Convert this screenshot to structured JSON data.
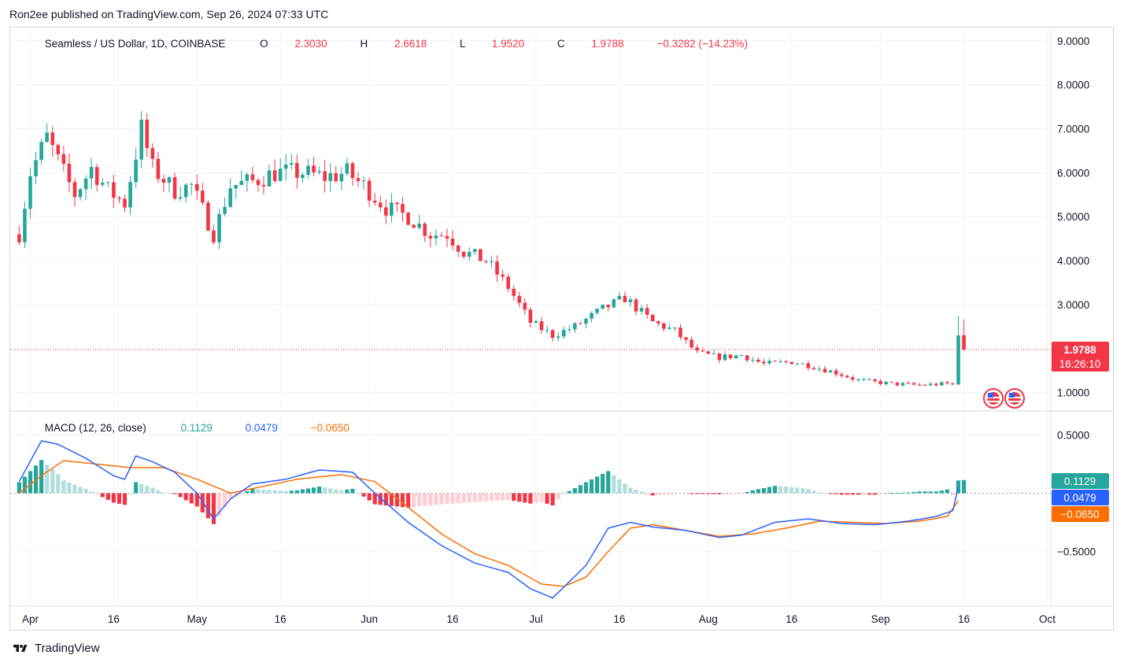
{
  "header": {
    "publisher_text": "Ron2ee published on TradingView.com, Sep 26, 2024 07:33 UTC"
  },
  "symbol_line": {
    "title": "Seamless / US Dollar, 1D, COINBASE",
    "o_label": "O",
    "o_value": "2.3030",
    "h_label": "H",
    "h_value": "2.6618",
    "l_label": "L",
    "l_value": "1.9520",
    "c_label": "C",
    "c_value": "1.9788",
    "change": "−0.3282 (−14.23%)"
  },
  "macd_line": {
    "title": "MACD (12, 26, close)",
    "hist_value": "0.1129",
    "macd_value": "0.0479",
    "signal_value": "−0.0650"
  },
  "price_badge": {
    "price": "1.9788",
    "countdown": "16:26:10"
  },
  "macd_badges": {
    "hist": "0.1129",
    "macd": "0.0479",
    "signal": "−0.0650"
  },
  "footer": {
    "brand": "TradingView"
  },
  "colors": {
    "up": "#26a69a",
    "down": "#f23645",
    "up_light": "#b2dfdb",
    "down_light": "#ffcdd2",
    "macd": "#2962ff",
    "signal": "#ff6d00",
    "grid": "#f0f3fa",
    "text": "#131722"
  },
  "chart_data": [
    {
      "type": "candlestick",
      "title": "Seamless / US Dollar, 1D, COINBASE",
      "ylim": [
        0.6,
        9.3
      ],
      "y_ticks": [
        "9.0000",
        "8.0000",
        "7.0000",
        "6.0000",
        "5.0000",
        "4.0000",
        "3.0000",
        "1.0000"
      ],
      "x_ticks": [
        "Apr",
        "16",
        "May",
        "16",
        "Jun",
        "16",
        "Jul",
        "16",
        "Aug",
        "16",
        "Sep",
        "16",
        "Oct"
      ],
      "last_price": 1.9788,
      "anchors": [
        {
          "d": -2,
          "p": 4.6
        },
        {
          "d": 0,
          "p": 6.0
        },
        {
          "d": 3,
          "p": 6.8
        },
        {
          "d": 6,
          "p": 6.0
        },
        {
          "d": 8,
          "p": 5.5
        },
        {
          "d": 11,
          "p": 6.1
        },
        {
          "d": 14,
          "p": 5.6
        },
        {
          "d": 17,
          "p": 5.3
        },
        {
          "d": 20,
          "p": 7.0
        },
        {
          "d": 22,
          "p": 6.1
        },
        {
          "d": 26,
          "p": 5.6
        },
        {
          "d": 29,
          "p": 5.7
        },
        {
          "d": 33,
          "p": 4.6
        },
        {
          "d": 36,
          "p": 5.7
        },
        {
          "d": 40,
          "p": 5.8
        },
        {
          "d": 44,
          "p": 6.0
        },
        {
          "d": 49,
          "p": 6.0
        },
        {
          "d": 53,
          "p": 5.9
        },
        {
          "d": 57,
          "p": 6.0
        },
        {
          "d": 60,
          "p": 5.7
        },
        {
          "d": 64,
          "p": 5.2
        },
        {
          "d": 68,
          "p": 5.0
        },
        {
          "d": 72,
          "p": 4.6
        },
        {
          "d": 75,
          "p": 4.6
        },
        {
          "d": 78,
          "p": 4.2
        },
        {
          "d": 82,
          "p": 4.0
        },
        {
          "d": 86,
          "p": 3.4
        },
        {
          "d": 90,
          "p": 2.6
        },
        {
          "d": 94,
          "p": 2.3
        },
        {
          "d": 98,
          "p": 2.5
        },
        {
          "d": 103,
          "p": 2.9
        },
        {
          "d": 107,
          "p": 3.15
        },
        {
          "d": 112,
          "p": 2.6
        },
        {
          "d": 116,
          "p": 2.4
        },
        {
          "d": 120,
          "p": 1.9
        },
        {
          "d": 124,
          "p": 1.8
        },
        {
          "d": 128,
          "p": 1.85
        },
        {
          "d": 132,
          "p": 1.65
        },
        {
          "d": 137,
          "p": 1.7
        },
        {
          "d": 140,
          "p": 1.62
        },
        {
          "d": 145,
          "p": 1.45
        },
        {
          "d": 149,
          "p": 1.28
        },
        {
          "d": 155,
          "p": 1.2
        },
        {
          "d": 160,
          "p": 1.17
        },
        {
          "d": 165,
          "p": 1.2
        },
        {
          "d": 166,
          "p": 1.18
        },
        {
          "d": 167,
          "p": 2.3
        },
        {
          "d": 168,
          "p": 1.98
        }
      ]
    },
    {
      "type": "macd",
      "title": "MACD (12, 26, close)",
      "ylim": [
        -0.97,
        0.7
      ],
      "y_ticks": [
        "0.5000",
        "−0.5000"
      ],
      "macd_anchors": [
        {
          "d": -2,
          "p": 0.1
        },
        {
          "d": 2,
          "p": 0.45
        },
        {
          "d": 5,
          "p": 0.42
        },
        {
          "d": 10,
          "p": 0.3
        },
        {
          "d": 15,
          "p": 0.15
        },
        {
          "d": 17,
          "p": 0.12
        },
        {
          "d": 19,
          "p": 0.32
        },
        {
          "d": 22,
          "p": 0.27
        },
        {
          "d": 26,
          "p": 0.18
        },
        {
          "d": 30,
          "p": 0.0
        },
        {
          "d": 33,
          "p": -0.22
        },
        {
          "d": 36,
          "p": -0.05
        },
        {
          "d": 40,
          "p": 0.08
        },
        {
          "d": 46,
          "p": 0.12
        },
        {
          "d": 52,
          "p": 0.2
        },
        {
          "d": 58,
          "p": 0.18
        },
        {
          "d": 62,
          "p": 0.0
        },
        {
          "d": 68,
          "p": -0.25
        },
        {
          "d": 74,
          "p": -0.45
        },
        {
          "d": 80,
          "p": -0.6
        },
        {
          "d": 86,
          "p": -0.68
        },
        {
          "d": 90,
          "p": -0.82
        },
        {
          "d": 94,
          "p": -0.9
        },
        {
          "d": 100,
          "p": -0.62
        },
        {
          "d": 104,
          "p": -0.3
        },
        {
          "d": 108,
          "p": -0.25
        },
        {
          "d": 112,
          "p": -0.29
        },
        {
          "d": 118,
          "p": -0.32
        },
        {
          "d": 124,
          "p": -0.38
        },
        {
          "d": 128,
          "p": -0.36
        },
        {
          "d": 134,
          "p": -0.25
        },
        {
          "d": 140,
          "p": -0.22
        },
        {
          "d": 146,
          "p": -0.26
        },
        {
          "d": 152,
          "p": -0.27
        },
        {
          "d": 158,
          "p": -0.24
        },
        {
          "d": 163,
          "p": -0.2
        },
        {
          "d": 166,
          "p": -0.15
        },
        {
          "d": 167,
          "p": 0.05
        }
      ],
      "signal_anchors": [
        {
          "d": -2,
          "p": 0.0
        },
        {
          "d": 2,
          "p": 0.15
        },
        {
          "d": 6,
          "p": 0.28
        },
        {
          "d": 12,
          "p": 0.25
        },
        {
          "d": 18,
          "p": 0.22
        },
        {
          "d": 24,
          "p": 0.22
        },
        {
          "d": 30,
          "p": 0.12
        },
        {
          "d": 36,
          "p": 0.0
        },
        {
          "d": 42,
          "p": 0.06
        },
        {
          "d": 48,
          "p": 0.12
        },
        {
          "d": 56,
          "p": 0.16
        },
        {
          "d": 62,
          "p": 0.1
        },
        {
          "d": 68,
          "p": -0.12
        },
        {
          "d": 74,
          "p": -0.35
        },
        {
          "d": 80,
          "p": -0.52
        },
        {
          "d": 86,
          "p": -0.62
        },
        {
          "d": 92,
          "p": -0.78
        },
        {
          "d": 96,
          "p": -0.8
        },
        {
          "d": 100,
          "p": -0.72
        },
        {
          "d": 104,
          "p": -0.5
        },
        {
          "d": 108,
          "p": -0.3
        },
        {
          "d": 112,
          "p": -0.27
        },
        {
          "d": 118,
          "p": -0.32
        },
        {
          "d": 124,
          "p": -0.37
        },
        {
          "d": 130,
          "p": -0.35
        },
        {
          "d": 136,
          "p": -0.3
        },
        {
          "d": 142,
          "p": -0.24
        },
        {
          "d": 148,
          "p": -0.25
        },
        {
          "d": 154,
          "p": -0.26
        },
        {
          "d": 160,
          "p": -0.24
        },
        {
          "d": 165,
          "p": -0.2
        },
        {
          "d": 167,
          "p": -0.065
        }
      ]
    }
  ]
}
